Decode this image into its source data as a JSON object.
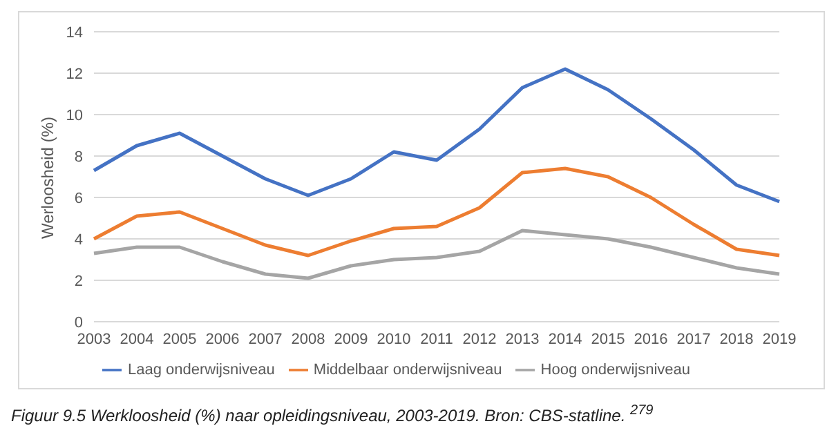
{
  "chart_data": {
    "type": "line",
    "ylabel": "Werloosheid (%)",
    "categories": [
      "2003",
      "2004",
      "2005",
      "2006",
      "2007",
      "2008",
      "2009",
      "2010",
      "2011",
      "2012",
      "2013",
      "2014",
      "2015",
      "2016",
      "2017",
      "2018",
      "2019"
    ],
    "series": [
      {
        "name": "Laag onderwijsniveau",
        "color": "#4472c4",
        "values": [
          7.3,
          8.5,
          9.1,
          8.0,
          6.9,
          6.1,
          6.9,
          8.2,
          7.8,
          9.3,
          11.3,
          12.2,
          11.2,
          9.8,
          8.3,
          6.6,
          5.8
        ]
      },
      {
        "name": "Middelbaar onderwijsniveau",
        "color": "#ed7d31",
        "values": [
          4.0,
          5.1,
          5.3,
          4.5,
          3.7,
          3.2,
          3.9,
          4.5,
          4.6,
          5.5,
          7.2,
          7.4,
          7.0,
          6.0,
          4.7,
          3.5,
          3.2
        ]
      },
      {
        "name": "Hoog onderwijsniveau",
        "color": "#a5a5a5",
        "values": [
          3.3,
          3.6,
          3.6,
          2.9,
          2.3,
          2.1,
          2.7,
          3.0,
          3.1,
          3.4,
          4.4,
          4.2,
          4.0,
          3.6,
          3.1,
          2.6,
          2.3
        ]
      }
    ],
    "ylim": [
      0,
      14
    ],
    "yticks": [
      0,
      2,
      4,
      6,
      8,
      10,
      12,
      14
    ],
    "grid": "y",
    "legend": "bottom",
    "marker": "none",
    "line_style": "solid",
    "annotations": [
      "Figuur 9.5 Werkloosheid (%) naar opleidingsniveau, 2003-2019. Bron: CBS-statline. $^{279}$"
    ]
  }
}
